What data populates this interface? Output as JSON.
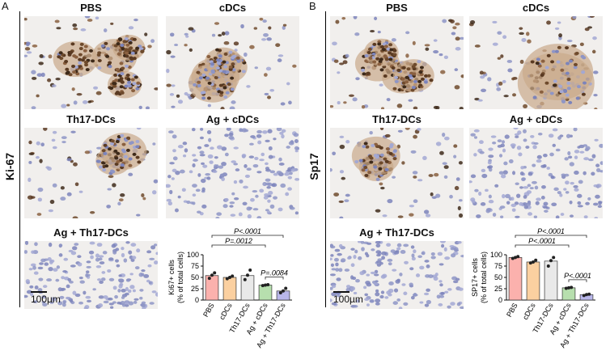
{
  "panels": [
    {
      "letter": "A",
      "stain": "Ki-67",
      "images": [
        "PBS",
        "cDCs",
        "Th17-DCs",
        "Ag + cDCs",
        "Ag + Th17-DCs"
      ],
      "scale_bar": "100µm"
    },
    {
      "letter": "B",
      "stain": "Sp17",
      "images": [
        "PBS",
        "cDCs",
        "Th17-DCs",
        "Ag + cDCs",
        "Ag + Th17-DCs"
      ],
      "scale_bar": "100µm"
    }
  ],
  "chart_data": [
    {
      "type": "bar",
      "ylabel": "Ki67+ cells\n(% of total cells)",
      "ylim": [
        0,
        100
      ],
      "yticks": [
        0,
        25,
        50,
        75,
        100
      ],
      "categories": [
        "PBS",
        "cDCs",
        "Th17-DCs",
        "Ag + cDCs",
        "Ag + Th17-DCs"
      ],
      "values": [
        54,
        50,
        54,
        33,
        20
      ],
      "points": [
        [
          48,
          55,
          60
        ],
        [
          47,
          50,
          53
        ],
        [
          45,
          55,
          66
        ],
        [
          32,
          33,
          34
        ],
        [
          16,
          20,
          26
        ]
      ],
      "colors": [
        "#fbb1ad",
        "#fbd0a0",
        "#e9e9e9",
        "#b7dfae",
        "#b9b7ea"
      ],
      "annotations": [
        {
          "text": "P<.0001",
          "from": 0,
          "to": 4
        },
        {
          "text": "P=.0012",
          "from": 0,
          "to": 3
        },
        {
          "text": "P=.0084",
          "from": 3,
          "to": 4
        }
      ]
    },
    {
      "type": "bar",
      "ylabel": "SP17+ cells\n(% of total cells)",
      "ylim": [
        0,
        100
      ],
      "yticks": [
        0,
        25,
        50,
        75,
        100
      ],
      "categories": [
        "PBS",
        "cDCs",
        "Th17-DCs",
        "Ag + cDCs",
        "Ag + Th17-DCs"
      ],
      "values": [
        94,
        84,
        86,
        27,
        12
      ],
      "points": [
        [
          92,
          94,
          96
        ],
        [
          82,
          84,
          88
        ],
        [
          75,
          87,
          94
        ],
        [
          26,
          27,
          28
        ],
        [
          10,
          12,
          13
        ]
      ],
      "colors": [
        "#fbb1ad",
        "#fbd0a0",
        "#e9e9e9",
        "#b7dfae",
        "#b9b7ea"
      ],
      "annotations": [
        {
          "text": "P<.0001",
          "from": 0,
          "to": 4
        },
        {
          "text": "P<.0001",
          "from": 0,
          "to": 3
        },
        {
          "text": "P<.0001",
          "from": 3,
          "to": 4
        }
      ]
    }
  ]
}
